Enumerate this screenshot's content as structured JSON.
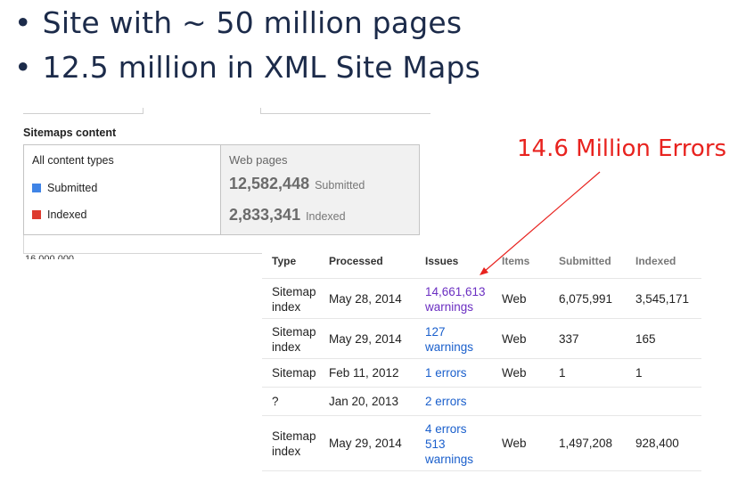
{
  "bullets": [
    "Site with ~ 50 million pages",
    "12.5 million in XML Site Maps"
  ],
  "sitemaps_panel": {
    "title": "Sitemaps content",
    "content_types_label": "All content types",
    "legend": [
      {
        "label": "Submitted",
        "color": "#3f84e6"
      },
      {
        "label": "Indexed",
        "color": "#dd3b2f"
      }
    ],
    "web_pages": {
      "heading": "Web pages",
      "submitted_value": "12,582,448",
      "submitted_label": "Submitted",
      "indexed_value": "2,833,341",
      "indexed_label": "Indexed"
    },
    "axis_label": "16,000,000"
  },
  "annotation": {
    "text": "14.6 Million Errors",
    "color": "#e8231f"
  },
  "table": {
    "headers": [
      "Type",
      "Processed",
      "Issues",
      "Items",
      "Submitted",
      "Indexed"
    ],
    "rows": [
      {
        "type": [
          "Sitemap",
          "index"
        ],
        "processed": "May 28, 2014",
        "issues": [
          "14,661,613",
          "warnings"
        ],
        "items": "Web",
        "submitted": "6,075,991",
        "indexed": "3,545,171"
      },
      {
        "type": [
          "Sitemap",
          "index"
        ],
        "processed": "May 29, 2014",
        "issues": [
          "127",
          "warnings"
        ],
        "items": "Web",
        "submitted": "337",
        "indexed": "165"
      },
      {
        "type": [
          "Sitemap"
        ],
        "processed": "Feb 11, 2012",
        "issues": [
          "1 errors"
        ],
        "items": "Web",
        "submitted": "1",
        "indexed": "1"
      },
      {
        "type": [
          "?"
        ],
        "processed": "Jan 20, 2013",
        "issues": [
          "2 errors"
        ],
        "items": "",
        "submitted": "",
        "indexed": ""
      },
      {
        "type": [
          "Sitemap",
          "index"
        ],
        "processed": "May 29, 2014",
        "issues": [
          "4 errors",
          "513",
          "warnings"
        ],
        "items": "Web",
        "submitted": "1,497,208",
        "indexed": "928,400"
      }
    ]
  }
}
